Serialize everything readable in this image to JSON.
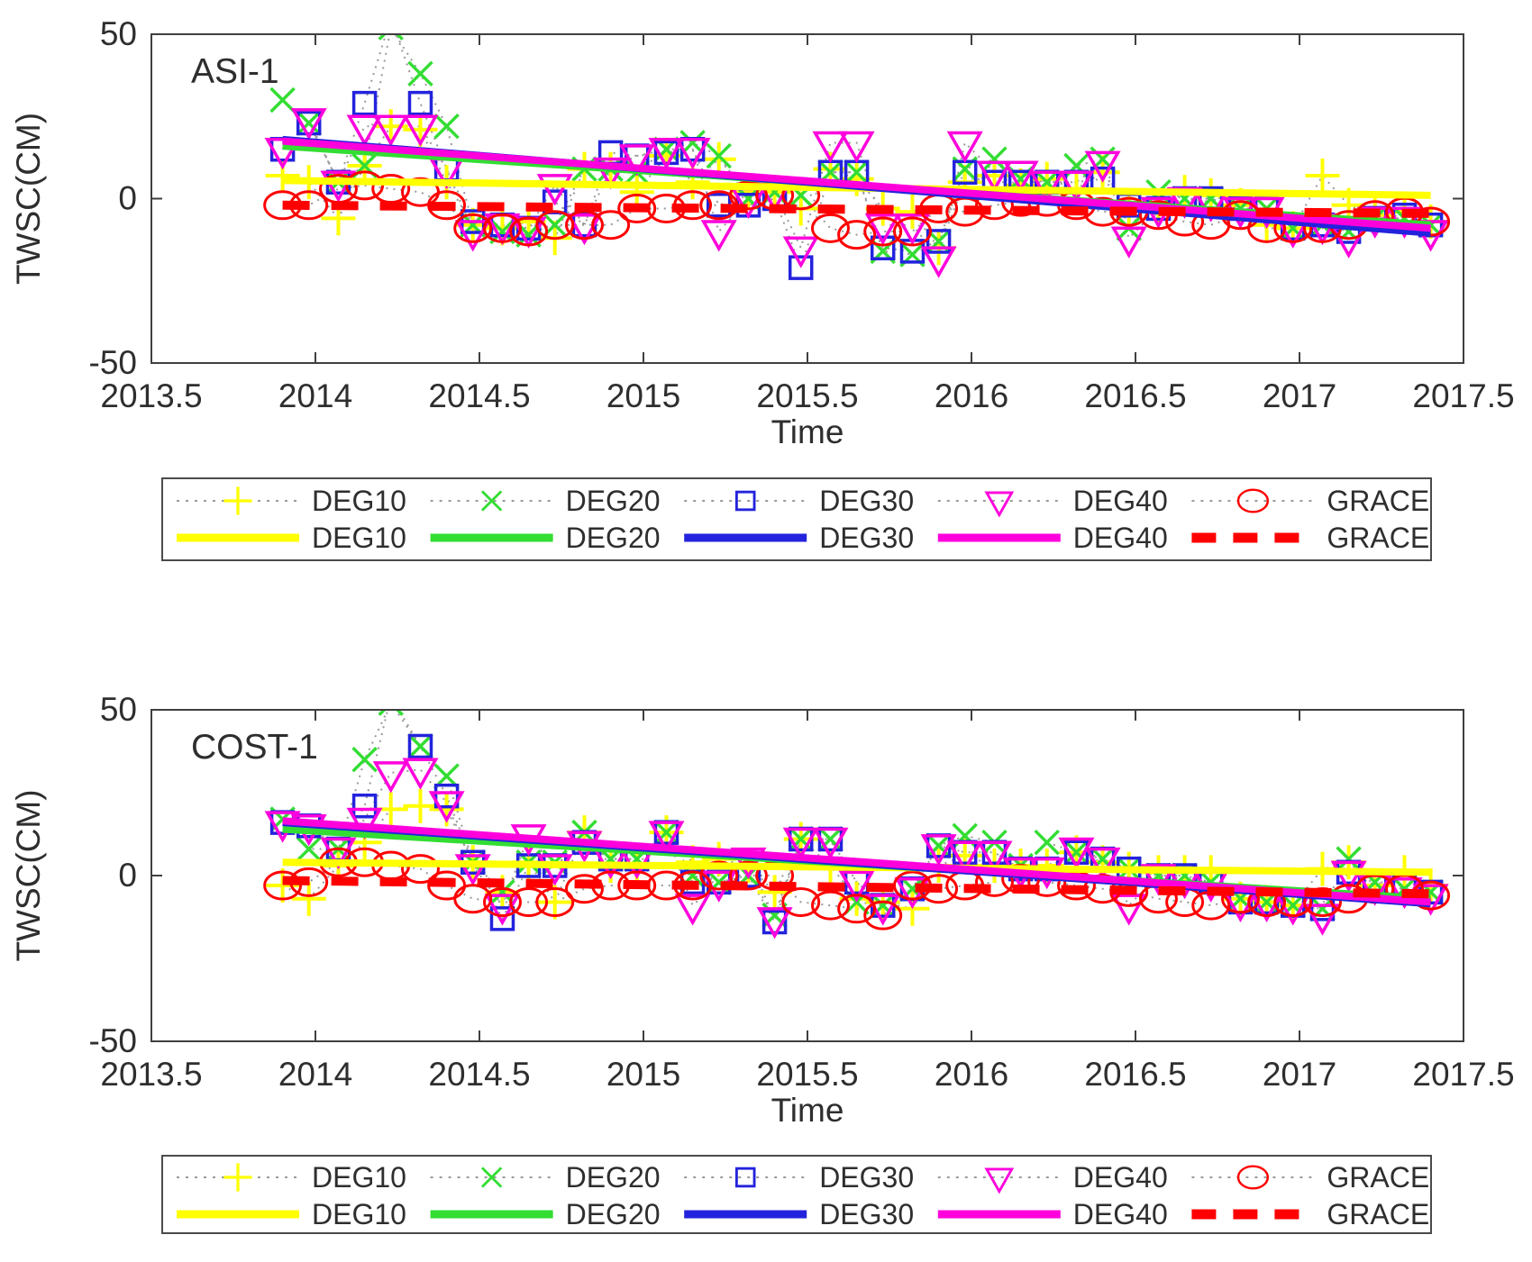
{
  "figure": {
    "background": "#ffffff",
    "axis_color": "#3f3f3f",
    "text_color": "#2e2e2e",
    "connector_color": "#999999",
    "legend_border_color": "#4b4b4b"
  },
  "chart_data": [
    {
      "type": "scatter",
      "title": "ASI-1",
      "xlabel": "Time",
      "ylabel": "TWSC(CM)",
      "xlim": [
        2013.5,
        2017.5
      ],
      "ylim": [
        -50,
        50
      ],
      "xticks": [
        "2013.5",
        "2014",
        "2014.5",
        "2015",
        "2015.5",
        "2016",
        "2016.5",
        "2017",
        "2017.5"
      ],
      "xtick_values": [
        2013.5,
        2014,
        2014.5,
        2015,
        2015.5,
        2016,
        2016.5,
        2017,
        2017.5
      ],
      "yticks": [
        "50",
        "0",
        "-50"
      ],
      "ytick_values": [
        50,
        0,
        -50
      ],
      "grid": false,
      "x": [
        2013.9,
        2013.98,
        2014.07,
        2014.15,
        2014.23,
        2014.32,
        2014.4,
        2014.48,
        2014.57,
        2014.65,
        2014.73,
        2014.82,
        2014.9,
        2014.98,
        2015.07,
        2015.15,
        2015.23,
        2015.32,
        2015.4,
        2015.48,
        2015.57,
        2015.65,
        2015.73,
        2015.82,
        2015.9,
        2015.98,
        2016.07,
        2016.15,
        2016.23,
        2016.32,
        2016.4,
        2016.48,
        2016.57,
        2016.65,
        2016.73,
        2016.82,
        2016.9,
        2016.98,
        2017.07,
        2017.15,
        2017.23,
        2017.32,
        2017.4
      ],
      "series": [
        {
          "name": "DEG10",
          "marker": "plus",
          "color": "#ffff00",
          "values": [
            7,
            5,
            -6,
            10,
            22,
            21,
            5,
            -8,
            -9,
            -7,
            -12,
            9,
            9,
            2,
            13,
            5,
            12,
            2,
            2,
            -3,
            9,
            6,
            -3,
            -4,
            -15,
            5,
            7,
            4,
            6,
            3,
            8,
            -3,
            -3,
            2,
            1,
            -2,
            -8,
            -9,
            7,
            -2,
            -5,
            -4,
            -7
          ]
        },
        {
          "name": "DEG20",
          "marker": "x",
          "color": "#33dd33",
          "values": [
            30,
            23,
            5,
            10,
            52,
            38,
            22,
            -8,
            -10,
            -11,
            -8,
            9,
            9,
            8,
            15,
            17,
            13,
            0,
            2,
            1,
            8,
            8,
            -16,
            -17,
            -13,
            9,
            12,
            6,
            5,
            10,
            12,
            -9,
            2,
            0,
            0,
            -3,
            -3,
            -9,
            -8,
            -10,
            -6,
            -6,
            -8
          ]
        },
        {
          "name": "DEG30",
          "marker": "square",
          "color": "#2323dd",
          "values": [
            15,
            23,
            5,
            29,
            55,
            29,
            9,
            -7,
            -8,
            -9,
            -1,
            -8,
            14,
            13,
            14,
            15,
            -2,
            -2,
            0,
            -21,
            8,
            8,
            -15,
            -16,
            -13,
            8,
            5,
            5,
            5,
            5,
            6,
            -2,
            -3,
            0,
            0,
            -3,
            -3,
            -9,
            -8,
            -10,
            -6,
            -5,
            -8
          ]
        },
        {
          "name": "DEG40",
          "marker": "triangle-down",
          "color": "#ff00dd",
          "values": [
            15,
            24,
            5,
            22,
            22,
            22,
            9,
            -10,
            -8,
            -9,
            4,
            -8,
            9,
            13,
            15,
            15,
            -10,
            0,
            2,
            -15,
            17,
            17,
            -8,
            -8,
            -18,
            17,
            8,
            8,
            5,
            5,
            11,
            -12,
            -3,
            0,
            -1,
            -3,
            -3,
            -9,
            -8,
            -12,
            -6,
            -6,
            -10
          ]
        },
        {
          "name": "GRACE",
          "marker": "circle",
          "color": "#ff0000",
          "values": [
            -2,
            -2,
            3,
            4,
            3,
            2,
            -2,
            -9,
            -9,
            -10,
            -8,
            -8,
            -8,
            -3,
            -3,
            -2,
            -2,
            1,
            1,
            1,
            -9,
            -11,
            -10,
            -10,
            -3,
            -4,
            -2,
            -1,
            -1,
            -2,
            -4,
            -4,
            -5,
            -7,
            -8,
            -5,
            -9,
            -9,
            -9,
            -8,
            -5,
            -4,
            -7
          ]
        }
      ],
      "trend_lines": [
        {
          "name": "DEG10",
          "color": "#ffff00",
          "dashed": false,
          "x0": 2013.9,
          "x1": 2017.4,
          "v0": 5.5,
          "v1": 1
        },
        {
          "name": "DEG20",
          "color": "#33dd33",
          "dashed": false,
          "x0": 2013.9,
          "x1": 2017.4,
          "v0": 16,
          "v1": -8
        },
        {
          "name": "DEG30",
          "color": "#2323dd",
          "dashed": false,
          "x0": 2013.9,
          "x1": 2017.4,
          "v0": 18,
          "v1": -10.5
        },
        {
          "name": "DEG40",
          "color": "#ff00dd",
          "dashed": false,
          "x0": 2013.9,
          "x1": 2017.4,
          "v0": 17.5,
          "v1": -9
        },
        {
          "name": "GRACE",
          "color": "#ff0000",
          "dashed": true,
          "x0": 2013.9,
          "x1": 2017.4,
          "v0": -2,
          "v1": -4.5
        }
      ]
    },
    {
      "type": "scatter",
      "title": "COST-1",
      "xlabel": "Time",
      "ylabel": "TWSC(CM)",
      "xlim": [
        2013.5,
        2017.5
      ],
      "ylim": [
        -50,
        50
      ],
      "xticks": [
        "2013.5",
        "2014",
        "2014.5",
        "2015",
        "2015.5",
        "2016",
        "2016.5",
        "2017",
        "2017.5"
      ],
      "xtick_values": [
        2013.5,
        2014,
        2014.5,
        2015,
        2015.5,
        2016,
        2016.5,
        2017,
        2017.5
      ],
      "yticks": [
        "50",
        "0",
        "-50"
      ],
      "ytick_values": [
        50,
        0,
        -50
      ],
      "grid": false,
      "x": [
        2013.9,
        2013.98,
        2014.07,
        2014.15,
        2014.23,
        2014.32,
        2014.4,
        2014.48,
        2014.57,
        2014.65,
        2014.73,
        2014.82,
        2014.9,
        2014.98,
        2015.07,
        2015.15,
        2015.23,
        2015.32,
        2015.4,
        2015.48,
        2015.57,
        2015.65,
        2015.73,
        2015.82,
        2015.9,
        2015.98,
        2016.07,
        2016.15,
        2016.23,
        2016.32,
        2016.4,
        2016.48,
        2016.57,
        2016.65,
        2016.73,
        2016.82,
        2016.9,
        2016.98,
        2017.07,
        2017.15,
        2017.23,
        2017.32,
        2017.4
      ],
      "series": [
        {
          "name": "DEG10",
          "marker": "plus",
          "color": "#ffff00",
          "values": [
            -3,
            -7,
            3,
            10,
            20,
            21,
            20,
            4,
            -5,
            4,
            -8,
            13,
            3,
            3,
            13,
            4,
            5,
            3,
            -5,
            11,
            3,
            -7,
            -8,
            -10,
            3,
            6,
            3,
            3,
            3,
            7,
            4,
            2,
            1,
            1,
            1,
            -7,
            -8,
            -9,
            2,
            4,
            -3,
            1,
            -3
          ]
        },
        {
          "name": "DEG20",
          "marker": "x",
          "color": "#33dd33",
          "values": [
            17,
            8,
            8,
            35,
            52,
            39,
            30,
            4,
            -5,
            4,
            4,
            13,
            5,
            5,
            13,
            0,
            -2,
            0,
            -12,
            11,
            11,
            -8,
            -9,
            -4,
            9,
            12,
            10,
            3,
            10,
            7,
            5,
            2,
            0,
            0,
            -2,
            -7,
            -8,
            -9,
            -10,
            5,
            -2,
            -4,
            -5
          ]
        },
        {
          "name": "DEG30",
          "marker": "square",
          "color": "#2323dd",
          "values": [
            16,
            15,
            8,
            21,
            54,
            39,
            24,
            4,
            -13,
            3,
            3,
            10,
            5,
            5,
            13,
            -2,
            -2,
            0,
            -14,
            11,
            11,
            -2,
            -9,
            -4,
            9,
            7,
            7,
            2,
            2,
            7,
            5,
            2,
            0,
            0,
            -2,
            -8,
            -8,
            -9,
            -10,
            1,
            -3,
            -3,
            -5
          ]
        },
        {
          "name": "DEG40",
          "marker": "triangle-down",
          "color": "#ff00dd",
          "values": [
            16,
            15,
            8,
            17,
            31,
            32,
            22,
            3,
            -9,
            12,
            3,
            10,
            5,
            5,
            13,
            -9,
            -2,
            5,
            -13,
            11,
            11,
            -2,
            -9,
            -4,
            9,
            7,
            7,
            2,
            2,
            8,
            5,
            -9,
            0,
            -1,
            -2,
            -8,
            -8,
            -9,
            -12,
            1,
            -3,
            -4,
            -6
          ]
        },
        {
          "name": "GRACE",
          "marker": "circle",
          "color": "#ff0000",
          "values": [
            -3,
            -2,
            4,
            4,
            3,
            2,
            -3,
            -7,
            -8,
            -8,
            -8,
            -4,
            -3,
            -3,
            -3,
            -3,
            0,
            0,
            0,
            -8,
            -9,
            -10,
            -12,
            -3,
            -4,
            -3,
            -2,
            -1,
            -2,
            -3,
            -4,
            -5,
            -7,
            -8,
            -9,
            -7,
            -8,
            -8,
            -8,
            -7,
            -4,
            -4,
            -6
          ]
        }
      ],
      "trend_lines": [
        {
          "name": "DEG10",
          "color": "#ffff00",
          "dashed": false,
          "x0": 2013.9,
          "x1": 2017.4,
          "v0": 4,
          "v1": 1
        },
        {
          "name": "DEG20",
          "color": "#33dd33",
          "dashed": false,
          "x0": 2013.9,
          "x1": 2017.4,
          "v0": 14,
          "v1": -7
        },
        {
          "name": "DEG30",
          "color": "#2323dd",
          "dashed": false,
          "x0": 2013.9,
          "x1": 2017.4,
          "v0": 16,
          "v1": -8.5
        },
        {
          "name": "DEG40",
          "color": "#ff00dd",
          "dashed": false,
          "x0": 2013.9,
          "x1": 2017.4,
          "v0": 16.5,
          "v1": -8
        },
        {
          "name": "GRACE",
          "color": "#ff0000",
          "dashed": true,
          "x0": 2013.9,
          "x1": 2017.4,
          "v0": -1.5,
          "v1": -5.5
        }
      ]
    }
  ],
  "legend": {
    "position": "below-axis",
    "marker_row": [
      {
        "label": "DEG10",
        "marker": "plus",
        "color": "#ffff00"
      },
      {
        "label": "DEG20",
        "marker": "x",
        "color": "#33dd33"
      },
      {
        "label": "DEG30",
        "marker": "square",
        "color": "#2323dd"
      },
      {
        "label": "DEG40",
        "marker": "triangle-down",
        "color": "#ff00dd"
      },
      {
        "label": "GRACE",
        "marker": "circle",
        "color": "#ff0000"
      }
    ],
    "line_row": [
      {
        "label": "DEG10",
        "color": "#ffff00",
        "dashed": false
      },
      {
        "label": "DEG20",
        "color": "#33dd33",
        "dashed": false
      },
      {
        "label": "DEG30",
        "color": "#2323dd",
        "dashed": false
      },
      {
        "label": "DEG40",
        "color": "#ff00dd",
        "dashed": false
      },
      {
        "label": "GRACE",
        "color": "#ff0000",
        "dashed": true
      }
    ]
  }
}
